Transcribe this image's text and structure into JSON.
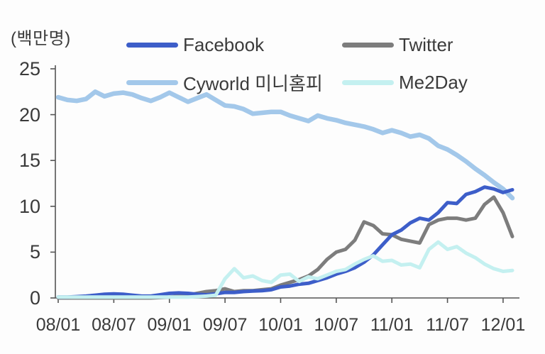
{
  "unit_label": "(백만명)",
  "colors": {
    "facebook": "#3d5ec9",
    "twitter": "#7d7d7d",
    "cyworld": "#a3c8ea",
    "me2day": "#c4f0f0",
    "axis": "#555555",
    "text": "#3a3a3a",
    "background": "#ffffff"
  },
  "legend": {
    "facebook": "Facebook",
    "twitter": "Twitter",
    "cyworld": "Cyworld 미니홈피",
    "me2day": "Me2Day"
  },
  "chart_data": {
    "type": "line",
    "title": "",
    "xlabel": "",
    "ylabel": "(백만명)",
    "ylim": [
      0,
      25
    ],
    "yticks": [
      0,
      5,
      10,
      15,
      20,
      25
    ],
    "grid": false,
    "legend_position": "top",
    "x": [
      "08/01",
      "08/02",
      "08/03",
      "08/04",
      "08/05",
      "08/06",
      "08/07",
      "08/08",
      "08/09",
      "08/10",
      "08/11",
      "08/12",
      "09/01",
      "09/02",
      "09/03",
      "09/04",
      "09/05",
      "09/06",
      "09/07",
      "09/08",
      "09/09",
      "09/10",
      "09/11",
      "09/12",
      "10/01",
      "10/02",
      "10/03",
      "10/04",
      "10/05",
      "10/06",
      "10/07",
      "10/08",
      "10/09",
      "10/10",
      "10/11",
      "10/12",
      "11/01",
      "11/02",
      "11/03",
      "11/04",
      "11/05",
      "11/06",
      "11/07",
      "11/08",
      "11/09",
      "11/10",
      "11/11",
      "11/12",
      "12/01",
      "12/02"
    ],
    "xticklabels": [
      "08/01",
      "08/07",
      "09/01",
      "09/07",
      "10/01",
      "10/07",
      "11/01",
      "11/07",
      "12/01"
    ],
    "xtick_interval_months": 6,
    "draw_order": [
      "cyworld",
      "twitter",
      "facebook",
      "me2day"
    ],
    "series": [
      {
        "key": "facebook",
        "name": "Facebook",
        "color": "#3d5ec9",
        "values": [
          0.1,
          0.1,
          0.15,
          0.2,
          0.3,
          0.4,
          0.45,
          0.4,
          0.3,
          0.2,
          0.2,
          0.35,
          0.5,
          0.55,
          0.5,
          0.4,
          0.35,
          0.45,
          0.6,
          0.6,
          0.7,
          0.75,
          0.8,
          0.9,
          1.2,
          1.3,
          1.5,
          1.6,
          1.9,
          2.2,
          2.6,
          2.9,
          3.3,
          3.9,
          4.7,
          5.8,
          6.9,
          7.4,
          8.2,
          8.7,
          8.5,
          9.3,
          10.4,
          10.3,
          11.3,
          11.6,
          12.1,
          11.9,
          11.5,
          11.8
        ]
      },
      {
        "key": "twitter",
        "name": "Twitter",
        "color": "#7d7d7d",
        "values": [
          0,
          0,
          0,
          0,
          0,
          0,
          0,
          0,
          0,
          0,
          0,
          0.05,
          0.1,
          0.2,
          0.3,
          0.5,
          0.7,
          0.8,
          1.0,
          0.7,
          0.8,
          0.8,
          0.9,
          1.0,
          1.4,
          1.7,
          2.0,
          2.4,
          3.1,
          4.2,
          5.0,
          5.3,
          6.3,
          8.3,
          7.9,
          7.0,
          6.9,
          6.4,
          6.2,
          6.0,
          8.0,
          8.5,
          8.7,
          8.7,
          8.5,
          8.7,
          10.2,
          11.0,
          9.3,
          6.7
        ]
      },
      {
        "key": "cyworld",
        "name": "Cyworld 미니홈피",
        "color": "#a3c8ea",
        "values": [
          21.9,
          21.6,
          21.5,
          21.7,
          22.5,
          22.0,
          22.3,
          22.4,
          22.2,
          21.8,
          21.5,
          21.9,
          22.4,
          21.9,
          21.4,
          21.8,
          22.2,
          21.6,
          21.0,
          20.9,
          20.6,
          20.1,
          20.2,
          20.3,
          20.3,
          19.9,
          19.6,
          19.3,
          19.9,
          19.6,
          19.4,
          19.1,
          18.9,
          18.7,
          18.4,
          18.0,
          18.3,
          18.0,
          17.6,
          17.8,
          17.4,
          16.6,
          16.2,
          15.6,
          14.9,
          14.1,
          13.4,
          12.6,
          11.9,
          10.9
        ]
      },
      {
        "key": "me2day",
        "name": "Me2Day",
        "color": "#c4f0f0",
        "values": [
          0.1,
          0.1,
          0.1,
          0.1,
          0.1,
          0.1,
          0.1,
          0.1,
          0.1,
          0.1,
          0.1,
          0.1,
          0.1,
          0.1,
          0.1,
          0.15,
          0.2,
          0.3,
          2.1,
          3.2,
          2.2,
          2.4,
          1.9,
          1.7,
          2.5,
          2.6,
          1.8,
          2.3,
          2.1,
          2.5,
          2.9,
          3.1,
          3.7,
          4.2,
          4.6,
          4.0,
          4.1,
          3.6,
          3.7,
          3.3,
          5.3,
          6.1,
          5.3,
          5.6,
          4.9,
          4.4,
          3.7,
          3.2,
          2.9,
          3.0
        ]
      }
    ]
  }
}
